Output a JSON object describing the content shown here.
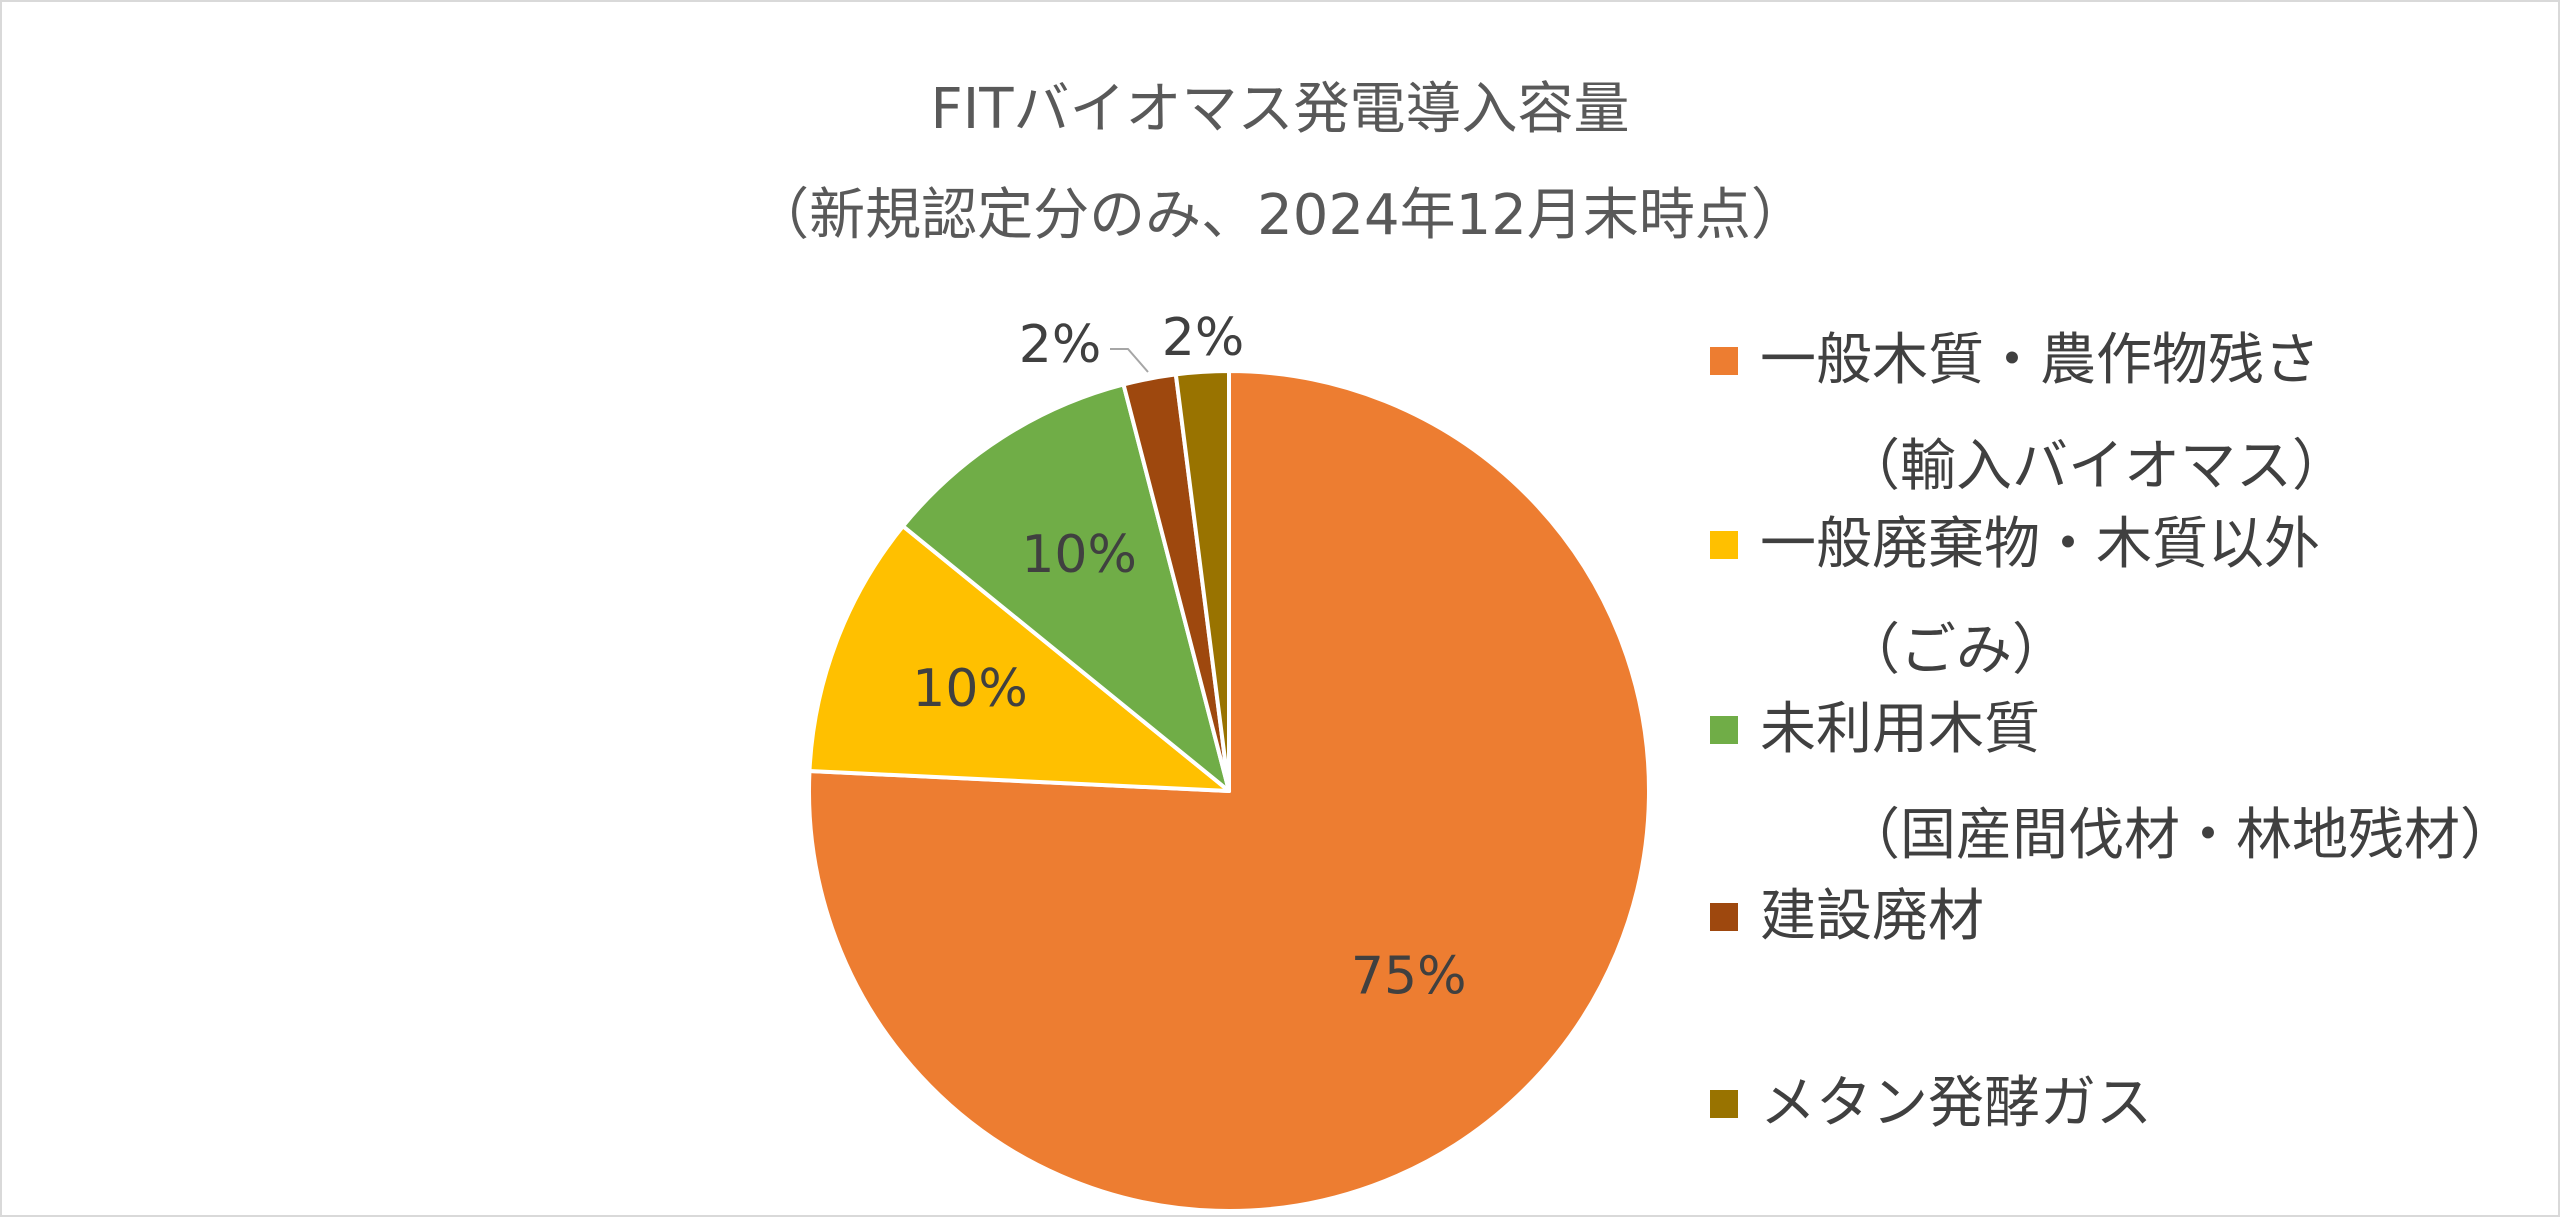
{
  "chart_data": {
    "type": "pie",
    "title": "FITバイオマス発電導入容量",
    "subtitle": "（新規認定分のみ、2024年12月末時点）",
    "slices": [
      {
        "label": "一般木質・農作物残さ（輸入バイオマス）",
        "value": 75,
        "data_label": "75%",
        "color": "#ED7D31"
      },
      {
        "label": "一般廃棄物・木質以外（ごみ）",
        "value": 10,
        "data_label": "10%",
        "color": "#FFC000"
      },
      {
        "label": "未利用木質（国産間伐材・林地残材）",
        "value": 10,
        "data_label": "10%",
        "color": "#70AD47"
      },
      {
        "label": "建設廃材",
        "value": 2,
        "data_label": "2%",
        "color": "#9E480E"
      },
      {
        "label": "メタン発酵ガス",
        "value": 2,
        "data_label": "2%",
        "color": "#997300"
      }
    ],
    "legend": [
      {
        "line1": "一般木質・農作物残さ",
        "line2": "（輸入バイオマス）",
        "color": "#ED7D31"
      },
      {
        "line1": "一般廃棄物・木質以外",
        "line2": "（ごみ）",
        "color": "#FFC000"
      },
      {
        "line1": "未利用木質",
        "line2": "（国産間伐材・林地残材）",
        "color": "#70AD47"
      },
      {
        "line1": "建設廃材",
        "line2": "",
        "color": "#9E480E"
      },
      {
        "line1": "メタン発酵ガス",
        "line2": "",
        "color": "#997300"
      }
    ],
    "legend_position": "right",
    "start_angle": "12 o'clock",
    "direction": "clockwise"
  }
}
